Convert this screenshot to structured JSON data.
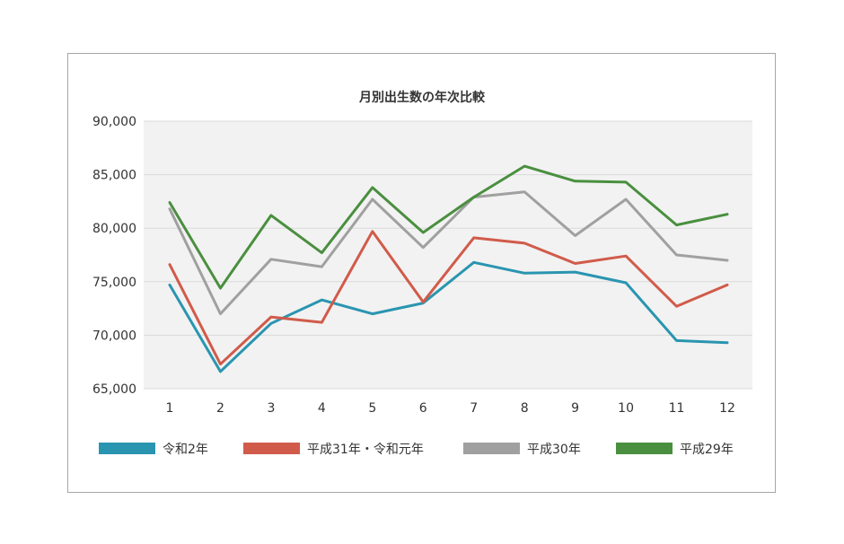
{
  "chart_data": {
    "type": "line",
    "title": "月別出生数の年次比較",
    "categories": [
      "1",
      "2",
      "3",
      "4",
      "5",
      "6",
      "7",
      "8",
      "9",
      "10",
      "11",
      "12"
    ],
    "ylim": [
      65000,
      90000
    ],
    "yticks": [
      65000,
      70000,
      75000,
      80000,
      85000,
      90000
    ],
    "ytick_labels": [
      "65,000",
      "70,000",
      "75,000",
      "80,000",
      "85,000",
      "90,000"
    ],
    "grid": true,
    "legend_position": "bottom",
    "series": [
      {
        "name": "令和2年",
        "color": "#2a95b0",
        "values": [
          74700,
          66600,
          71100,
          73300,
          72000,
          73000,
          76800,
          75800,
          75900,
          74900,
          69500,
          69300
        ]
      },
      {
        "name": "平成31年・令和元年",
        "color": "#d15b4a",
        "values": [
          76600,
          67300,
          71700,
          71200,
          79700,
          73100,
          79100,
          78600,
          76700,
          77400,
          72700,
          74700
        ]
      },
      {
        "name": "平成30年",
        "color": "#a0a0a0",
        "values": [
          81800,
          72000,
          77100,
          76400,
          82700,
          78200,
          82900,
          83400,
          79300,
          82700,
          77500,
          77000
        ]
      },
      {
        "name": "平成29年",
        "color": "#4a8f3f",
        "values": [
          82400,
          74400,
          81200,
          77700,
          83800,
          79600,
          82900,
          85800,
          84400,
          84300,
          80300,
          81300
        ]
      }
    ]
  }
}
